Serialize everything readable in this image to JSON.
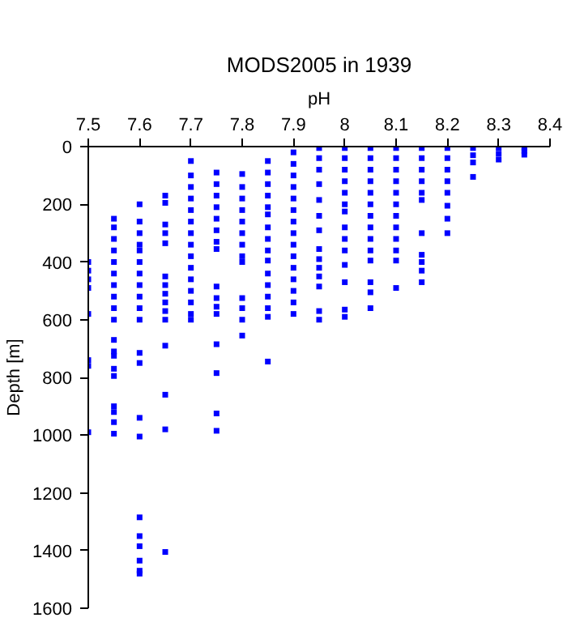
{
  "chart_data": {
    "type": "scatter",
    "title": "MODS2005 in 1939",
    "xlabel": "pH",
    "ylabel": "Depth [m]",
    "xlim": [
      7.5,
      8.4
    ],
    "xticks": [
      7.5,
      7.6,
      7.7,
      7.8,
      7.9,
      8,
      8.1,
      8.2,
      8.3,
      8.4
    ],
    "ylim": [
      1600,
      0
    ],
    "yticks": [
      0,
      200,
      400,
      600,
      800,
      1000,
      1200,
      1400,
      1600
    ],
    "grid": false,
    "marker": "square",
    "series": [
      {
        "color": "#0000ff",
        "x": [
          7.5,
          7.5,
          7.5,
          7.5,
          7.5,
          7.5,
          7.5,
          7.5,
          7.55,
          7.55,
          7.55,
          7.55,
          7.55,
          7.55,
          7.55,
          7.55,
          7.55,
          7.55,
          7.55,
          7.55,
          7.55,
          7.55,
          7.55,
          7.55,
          7.55,
          7.55,
          7.55,
          7.6,
          7.6,
          7.6,
          7.6,
          7.6,
          7.6,
          7.6,
          7.6,
          7.6,
          7.6,
          7.6,
          7.6,
          7.6,
          7.6,
          7.6,
          7.6,
          7.6,
          7.6,
          7.6,
          7.6,
          7.6,
          7.65,
          7.65,
          7.65,
          7.65,
          7.65,
          7.65,
          7.65,
          7.65,
          7.65,
          7.65,
          7.65,
          7.65,
          7.65,
          7.65,
          7.65,
          7.7,
          7.7,
          7.7,
          7.7,
          7.7,
          7.7,
          7.7,
          7.7,
          7.7,
          7.7,
          7.7,
          7.7,
          7.7,
          7.7,
          7.7,
          7.75,
          7.75,
          7.75,
          7.75,
          7.75,
          7.75,
          7.75,
          7.75,
          7.75,
          7.75,
          7.75,
          7.75,
          7.75,
          7.75,
          7.75,
          7.75,
          7.8,
          7.8,
          7.8,
          7.8,
          7.8,
          7.8,
          7.8,
          7.8,
          7.8,
          7.8,
          7.8,
          7.8,
          7.8,
          7.85,
          7.85,
          7.85,
          7.85,
          7.85,
          7.85,
          7.85,
          7.85,
          7.85,
          7.85,
          7.85,
          7.85,
          7.85,
          7.85,
          7.85,
          7.85,
          7.9,
          7.9,
          7.9,
          7.9,
          7.9,
          7.9,
          7.9,
          7.9,
          7.9,
          7.9,
          7.9,
          7.9,
          7.9,
          7.9,
          7.9,
          7.95,
          7.95,
          7.95,
          7.95,
          7.95,
          7.95,
          7.95,
          7.95,
          7.95,
          7.95,
          7.95,
          7.95,
          7.95,
          7.95,
          8.0,
          8.0,
          8.0,
          8.0,
          8.0,
          8.0,
          8.0,
          8.0,
          8.0,
          8.0,
          8.0,
          8.0,
          8.0,
          8.0,
          8.05,
          8.05,
          8.05,
          8.05,
          8.05,
          8.05,
          8.05,
          8.05,
          8.05,
          8.05,
          8.05,
          8.05,
          8.05,
          8.05,
          8.1,
          8.1,
          8.1,
          8.1,
          8.1,
          8.1,
          8.1,
          8.1,
          8.1,
          8.1,
          8.1,
          8.1,
          8.15,
          8.15,
          8.15,
          8.15,
          8.15,
          8.15,
          8.15,
          8.15,
          8.15,
          8.15,
          8.15,
          8.2,
          8.2,
          8.2,
          8.2,
          8.2,
          8.2,
          8.2,
          8.2,
          8.25,
          8.25,
          8.25,
          8.25,
          8.3,
          8.3,
          8.3,
          8.35,
          8.35,
          8.35
        ],
        "values": [
          400,
          430,
          460,
          490,
          580,
          740,
          760,
          990,
          250,
          280,
          320,
          360,
          400,
          440,
          480,
          520,
          560,
          600,
          670,
          710,
          725,
          770,
          795,
          900,
          920,
          955,
          995,
          200,
          260,
          300,
          340,
          360,
          400,
          440,
          480,
          520,
          560,
          600,
          715,
          750,
          940,
          1005,
          1285,
          1350,
          1385,
          1435,
          1470,
          1480,
          170,
          195,
          270,
          300,
          335,
          450,
          480,
          510,
          540,
          570,
          600,
          690,
          860,
          980,
          1405,
          50,
          100,
          140,
          180,
          220,
          260,
          300,
          340,
          380,
          420,
          460,
          500,
          540,
          580,
          600,
          90,
          130,
          170,
          210,
          250,
          290,
          330,
          355,
          485,
          525,
          555,
          580,
          685,
          785,
          925,
          985,
          95,
          140,
          180,
          220,
          260,
          300,
          340,
          380,
          400,
          525,
          560,
          600,
          655,
          50,
          90,
          130,
          170,
          210,
          235,
          280,
          320,
          360,
          395,
          440,
          480,
          520,
          560,
          590,
          745,
          20,
          60,
          100,
          140,
          180,
          220,
          260,
          300,
          340,
          380,
          420,
          460,
          500,
          540,
          580,
          5,
          40,
          80,
          130,
          185,
          240,
          290,
          355,
          390,
          420,
          450,
          485,
          570,
          600,
          5,
          40,
          80,
          120,
          160,
          200,
          225,
          280,
          320,
          360,
          410,
          470,
          565,
          590,
          5,
          40,
          80,
          120,
          160,
          200,
          240,
          280,
          320,
          360,
          395,
          470,
          505,
          560,
          5,
          40,
          80,
          120,
          160,
          200,
          240,
          280,
          320,
          360,
          395,
          490,
          5,
          40,
          80,
          120,
          160,
          185,
          300,
          375,
          400,
          430,
          470,
          5,
          40,
          80,
          120,
          160,
          205,
          250,
          300,
          5,
          30,
          55,
          105,
          5,
          25,
          45,
          5,
          15,
          28
        ]
      }
    ]
  }
}
